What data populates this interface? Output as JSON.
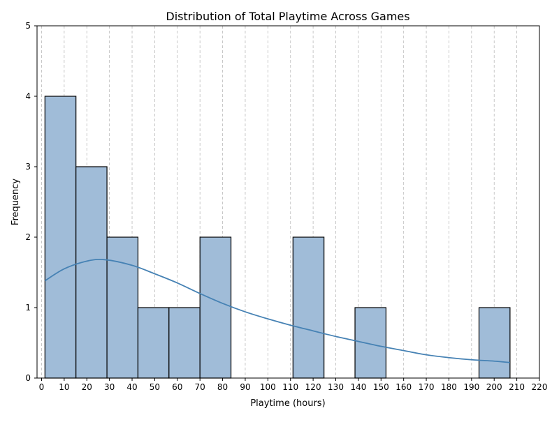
{
  "chart_data": {
    "type": "bar",
    "title": "Distribution of Total Playtime Across Games",
    "xlabel": "Playtime (hours)",
    "ylabel": "Frequency",
    "xlim": [
      -2,
      220
    ],
    "ylim": [
      0,
      5
    ],
    "x_ticks": [
      0,
      10,
      20,
      30,
      40,
      50,
      60,
      70,
      80,
      90,
      100,
      110,
      120,
      130,
      140,
      150,
      160,
      170,
      180,
      190,
      200,
      210,
      220
    ],
    "y_ticks": [
      0,
      1,
      2,
      3,
      4,
      5
    ],
    "grid": "x-dashed",
    "series": [
      {
        "type": "histogram",
        "bins": [
          {
            "x0": 1.5,
            "x1": 15.2,
            "count": 4
          },
          {
            "x0": 15.2,
            "x1": 28.9,
            "count": 3
          },
          {
            "x0": 28.9,
            "x1": 42.6,
            "count": 2
          },
          {
            "x0": 42.6,
            "x1": 56.3,
            "count": 1
          },
          {
            "x0": 56.3,
            "x1": 70.0,
            "count": 1
          },
          {
            "x0": 70.0,
            "x1": 83.7,
            "count": 2
          },
          {
            "x0": 83.7,
            "x1": 97.4,
            "count": 0
          },
          {
            "x0": 97.4,
            "x1": 111.1,
            "count": 0
          },
          {
            "x0": 111.1,
            "x1": 124.8,
            "count": 2
          },
          {
            "x0": 124.8,
            "x1": 138.5,
            "count": 0
          },
          {
            "x0": 138.5,
            "x1": 152.2,
            "count": 1
          },
          {
            "x0": 152.2,
            "x1": 165.9,
            "count": 0
          },
          {
            "x0": 165.9,
            "x1": 179.6,
            "count": 0
          },
          {
            "x0": 179.6,
            "x1": 193.3,
            "count": 0
          },
          {
            "x0": 193.3,
            "x1": 207.0,
            "count": 1
          }
        ]
      },
      {
        "type": "kde",
        "x": [
          1.5,
          10,
          20,
          28,
          40,
          50,
          60,
          70,
          80,
          90,
          100,
          110,
          120,
          130,
          140,
          150,
          160,
          170,
          180,
          190,
          200,
          207
        ],
        "values": [
          1.38,
          1.55,
          1.66,
          1.68,
          1.6,
          1.48,
          1.35,
          1.2,
          1.06,
          0.94,
          0.84,
          0.75,
          0.67,
          0.59,
          0.52,
          0.45,
          0.39,
          0.33,
          0.29,
          0.26,
          0.24,
          0.22
        ]
      }
    ],
    "colors": {
      "bar_fill": "#a0bcd8",
      "bar_stroke": "#000000",
      "kde_line": "#4682b4",
      "grid": "#bbbbbb"
    }
  }
}
